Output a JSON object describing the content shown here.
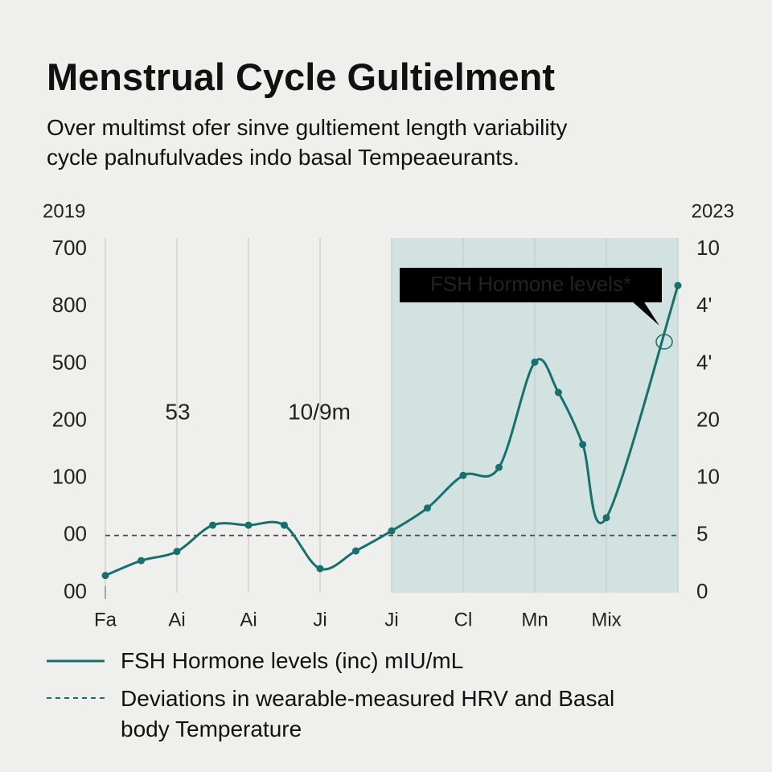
{
  "chart_data": {
    "type": "line",
    "title": "Menstrual Cycle Gultielment",
    "subtitle": [
      "Over multimst ofer sinve gultiement length variability",
      "cycle palnufulvades indo basal Tempeaeurants."
    ],
    "start_label": "2019",
    "end_label": "2023",
    "annotations": [
      "53",
      "10/9m"
    ],
    "callout": "FSH Hormone levels*",
    "x": [
      0,
      0.5,
      1,
      1.5,
      2,
      2.5,
      3,
      3.5,
      4,
      4.5,
      5,
      5.5,
      6,
      6.33,
      6.67,
      7,
      8
    ],
    "xlim": [
      0,
      8
    ],
    "xticks": [
      {
        "value": 0,
        "label": "Fa"
      },
      {
        "value": 1,
        "label": "Ai"
      },
      {
        "value": 2,
        "label": "Ai"
      },
      {
        "value": 3,
        "label": "Ji"
      },
      {
        "value": 4,
        "label": "Ji"
      },
      {
        "value": 5,
        "label": "Cl"
      },
      {
        "value": 6,
        "label": "Mn"
      },
      {
        "value": 7,
        "label": "Mix"
      }
    ],
    "ylim": [
      0,
      6.2
    ],
    "yticks": [
      {
        "value": 0,
        "label": "00"
      },
      {
        "value": 1,
        "label": "00"
      },
      {
        "value": 2,
        "label": "100"
      },
      {
        "value": 3,
        "label": "200"
      },
      {
        "value": 4,
        "label": "500"
      },
      {
        "value": 5,
        "label": "800"
      },
      {
        "value": 6,
        "label": "700"
      }
    ],
    "y2lim": [
      0,
      6.2
    ],
    "y2ticks": [
      0,
      {
        "value": 1,
        "label": "5"
      },
      {
        "value": 2,
        "label": "10"
      },
      {
        "value": 3,
        "label": "20"
      },
      {
        "value": 4,
        "label": "4'"
      },
      {
        "value": 5,
        "label": "4'"
      },
      {
        "value": 6,
        "label": "10"
      }
    ],
    "highlight": [
      4,
      8
    ],
    "grid": true,
    "series": [
      {
        "name": "FSH Hormone levels (inc) mIU/mL",
        "color": "#17706e",
        "values": [
          0.3,
          0.56,
          0.72,
          1.18,
          1.18,
          1.18,
          0.42,
          0.73,
          1.08,
          1.48,
          2.05,
          2.19,
          4.03,
          3.5,
          2.59,
          1.31,
          5.37
        ]
      }
    ],
    "baseline": {
      "name": "Deviations in wearable-measured HRV and Basal body Temperature",
      "value": 1
    }
  }
}
